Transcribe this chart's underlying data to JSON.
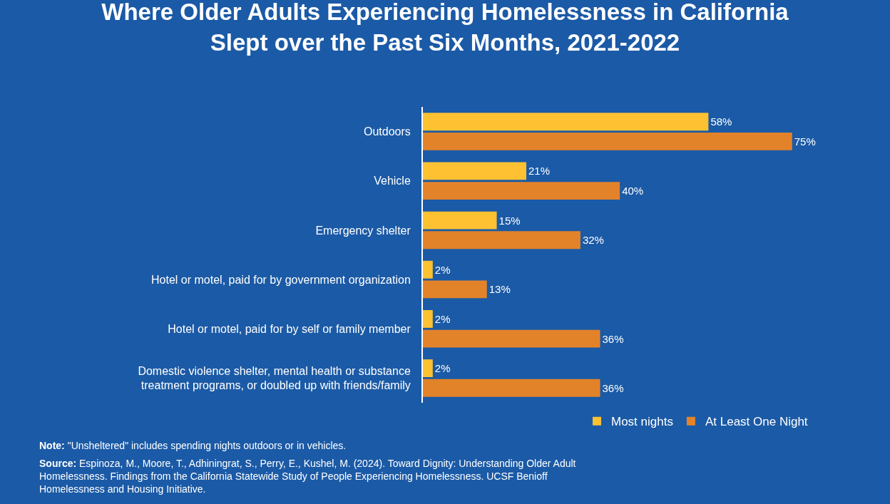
{
  "chart_data": {
    "type": "bar",
    "orientation": "horizontal",
    "title": "Where Older Adults Experiencing Homelessness in California\nSlept over the Past Six Months, 2021-2022",
    "categories": [
      "Outdoors",
      "Vehicle",
      "Emergency shelter",
      "Hotel or motel, paid for by government organization",
      "Hotel or motel, paid for by self or family member",
      "Domestic violence shelter, mental health or substance treatment programs, or doubled up with friends/family"
    ],
    "series": [
      {
        "name": "Most nights",
        "color": "#fdc132",
        "values": [
          58,
          21,
          15,
          2,
          2,
          2
        ],
        "value_labels": [
          "58%",
          "21%",
          "15%",
          "2%",
          "2%",
          "2%"
        ]
      },
      {
        "name": "At Least One Night",
        "color": "#e2832a",
        "values": [
          75,
          40,
          32,
          13,
          36,
          36
        ],
        "value_labels": [
          "75%",
          "40%",
          "32%",
          "13%",
          "36%",
          "36%"
        ]
      }
    ],
    "legend": "bottom",
    "annotations": [
      "Note: \"Unsheltered\" includes spending nights outdoors or in vehicles.",
      "Source: Espinoza, M., Moore, T., Adhiningrat, S., Perry, E., Kushel, M. (2024). Toward Dignity: Understanding Older Adult Homelessness. Findings from the California Statewide Study of People Experiencing Homelessness. UCSF Benioff Homelessness and Housing Initiative."
    ]
  }
}
